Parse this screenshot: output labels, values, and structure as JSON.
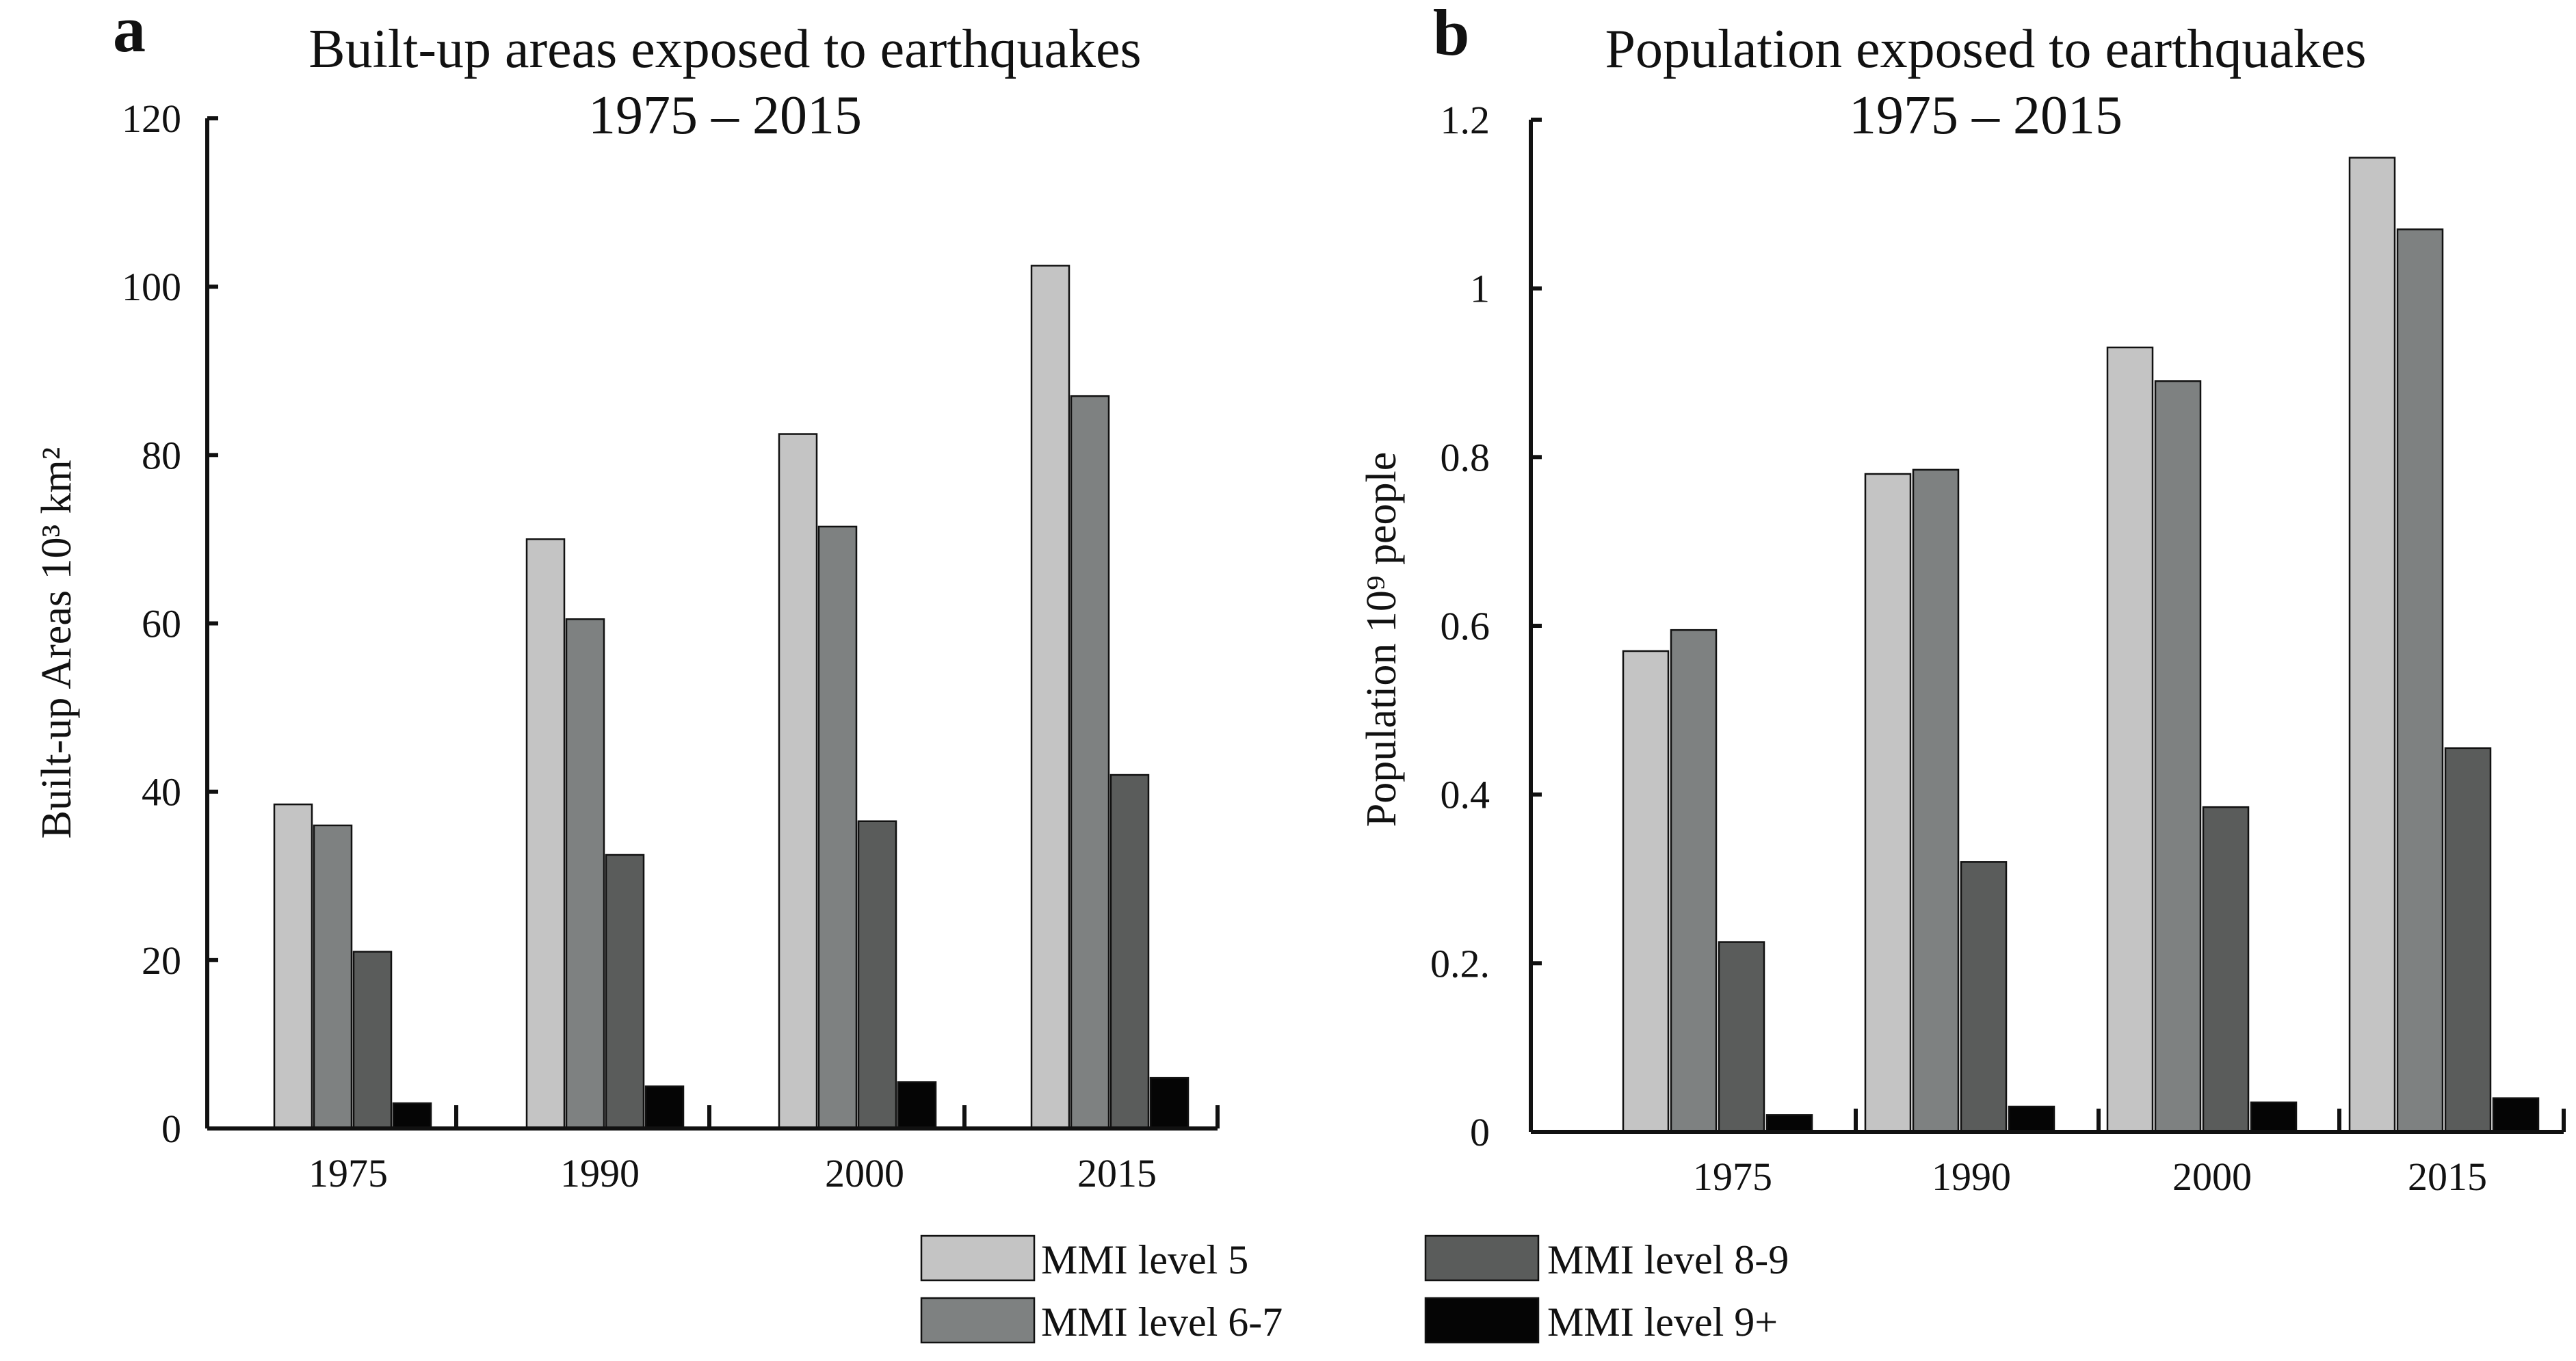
{
  "series_colors": [
    "#c4c4c4",
    "#7e8181",
    "#5a5c5b",
    "#050505"
  ],
  "legend": {
    "items": [
      "MMI level 5",
      "MMI level 6-7",
      "MMI level 8-9",
      "MMI level 9+"
    ]
  },
  "chart_data": [
    {
      "type": "bar",
      "panel_label": "a",
      "title_line1": "Built-up areas exposed to earthquakes",
      "title_line2": "1975 – 2015",
      "xlabel": "",
      "ylabel": "Built-up Areas 10³ km²",
      "categories": [
        "1975",
        "1990",
        "2000",
        "2015"
      ],
      "ylim": [
        0,
        120
      ],
      "yticks": [
        "0",
        "20",
        "40",
        "60",
        "80",
        "100",
        "120"
      ],
      "series": [
        {
          "name": "MMI level 5",
          "values": [
            38.5,
            70,
            82.5,
            102.5
          ]
        },
        {
          "name": "MMI level 6-7",
          "values": [
            36,
            60.5,
            71.5,
            87
          ]
        },
        {
          "name": "MMI level 8-9",
          "values": [
            21,
            32.5,
            36.5,
            42
          ]
        },
        {
          "name": "MMI level 9+",
          "values": [
            3,
            5,
            5.5,
            6
          ]
        }
      ]
    },
    {
      "type": "bar",
      "panel_label": "b",
      "title_line1": "Population exposed to earthquakes",
      "title_line2": "1975 – 2015",
      "xlabel": "",
      "ylabel": "Population 10⁹ people",
      "categories": [
        "1975",
        "1990",
        "2000",
        "2015"
      ],
      "ylim": [
        0,
        1.2
      ],
      "yticks": [
        "0",
        "0.2.",
        "0.4",
        "0.6",
        "0.8",
        "1",
        "1.2"
      ],
      "series": [
        {
          "name": "MMI level 5",
          "values": [
            0.57,
            0.78,
            0.93,
            1.155
          ]
        },
        {
          "name": "MMI level 6-7",
          "values": [
            0.595,
            0.785,
            0.89,
            1.07
          ]
        },
        {
          "name": "MMI level 8-9",
          "values": [
            0.225,
            0.32,
            0.385,
            0.455
          ]
        },
        {
          "name": "MMI level 9+",
          "values": [
            0.02,
            0.03,
            0.035,
            0.04
          ]
        }
      ]
    }
  ]
}
